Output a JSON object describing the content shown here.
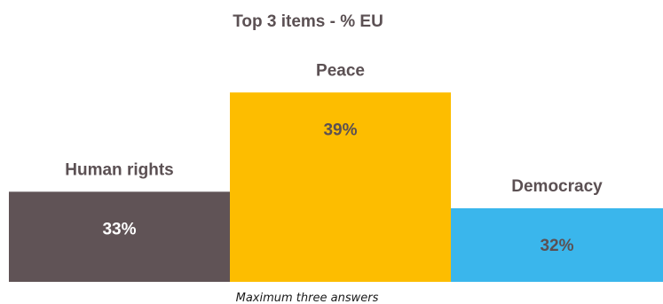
{
  "chart_data": {
    "type": "bar",
    "title": "Top 3 items - % EU",
    "categories": [
      "Human rights",
      "Peace",
      "Democracy"
    ],
    "values": [
      33,
      39,
      32
    ],
    "value_labels": [
      "33%",
      "39%",
      "32%"
    ],
    "colors": [
      "#605356",
      "#fdbd00",
      "#3ab6ec"
    ],
    "value_label_colors": [
      "#ffffff",
      "#5b5053",
      "#5b5053"
    ],
    "footnote": "Maximum three answers",
    "grid": false,
    "legend": "none"
  }
}
